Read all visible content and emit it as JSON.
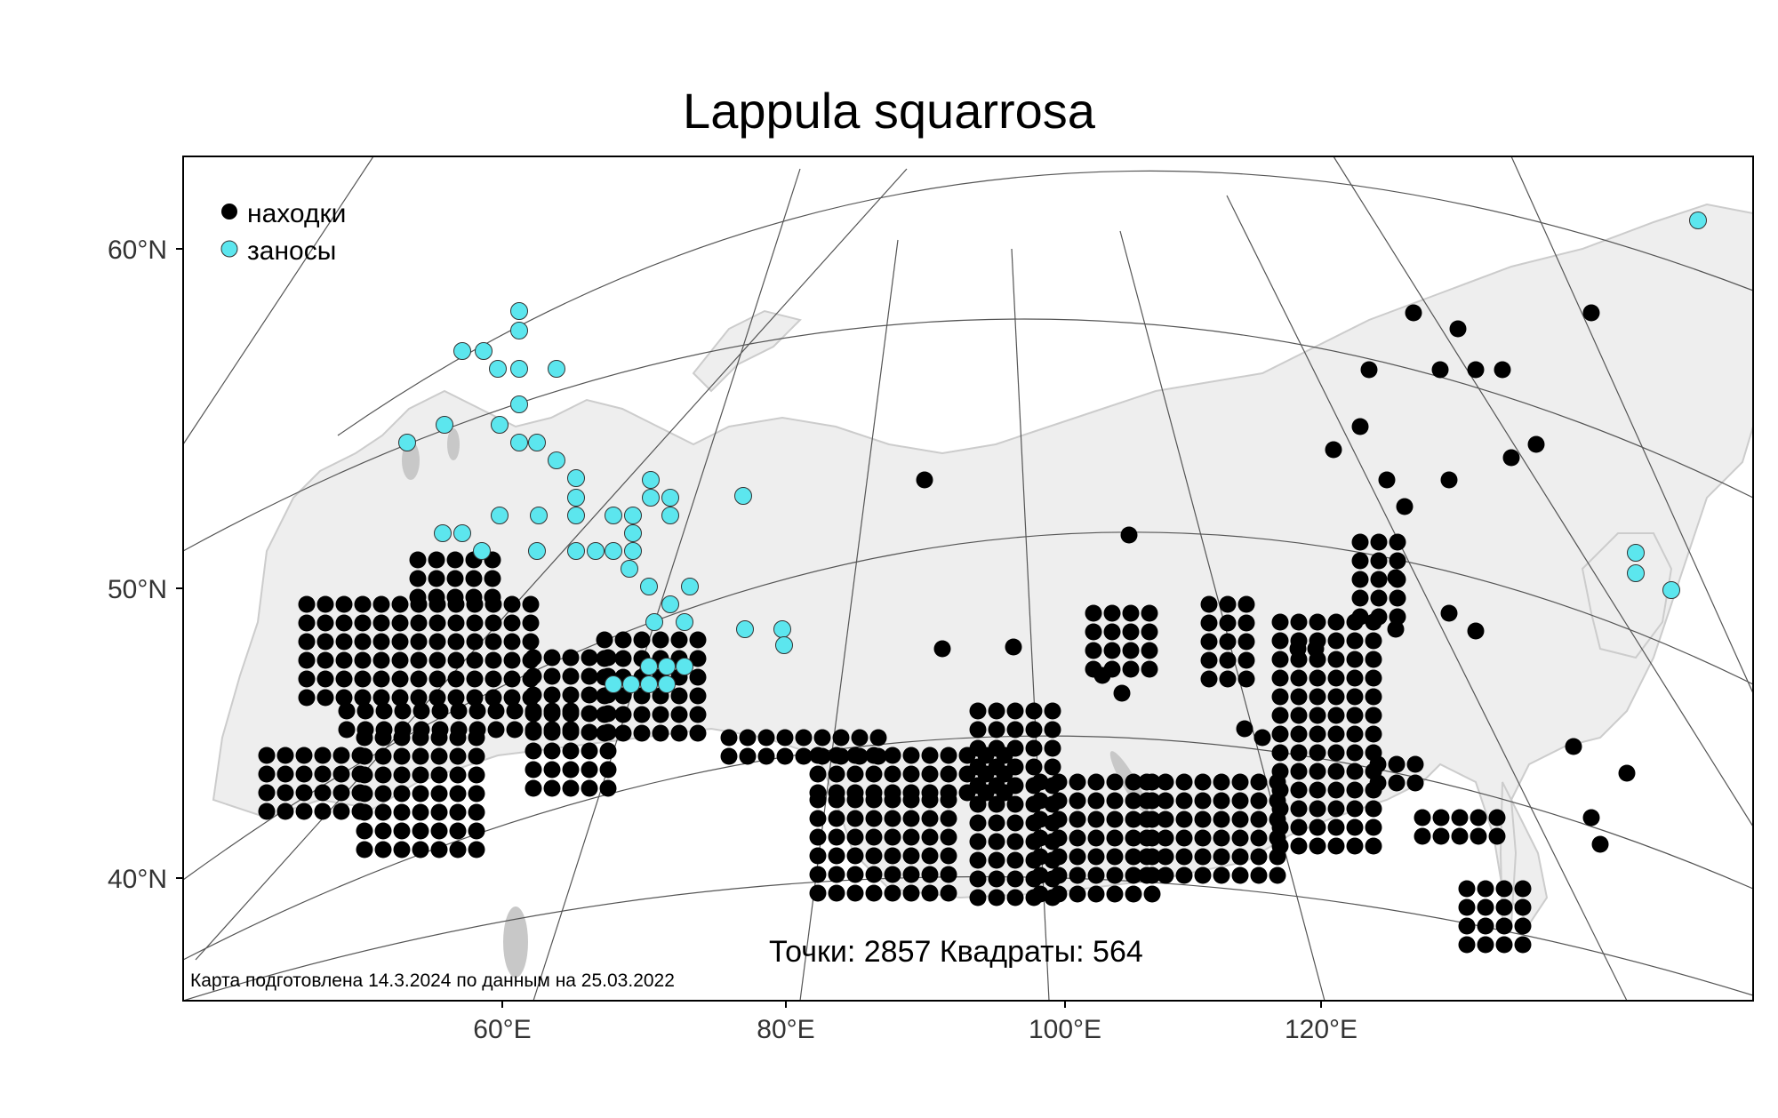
{
  "title": "Lappula squarrosa",
  "legend": {
    "finds_label": "находки",
    "introduced_label": "заносы",
    "finds_color": "#000000",
    "introduced_color": "#5ce6ee"
  },
  "stats": "Точки: 2857 Квадраты: 564",
  "footer": "Карта подготовлена 14.3.2024 по данным на 25.03.2022",
  "lat_labels": [
    "60°N",
    "50°N",
    "40°N"
  ],
  "lon_labels": [
    "60°E",
    "80°E",
    "100°E",
    "120°E"
  ],
  "colors": {
    "land": "#eeeeee",
    "water": "#c8c8c8",
    "graticule": "#555555",
    "frame": "#000000"
  }
}
